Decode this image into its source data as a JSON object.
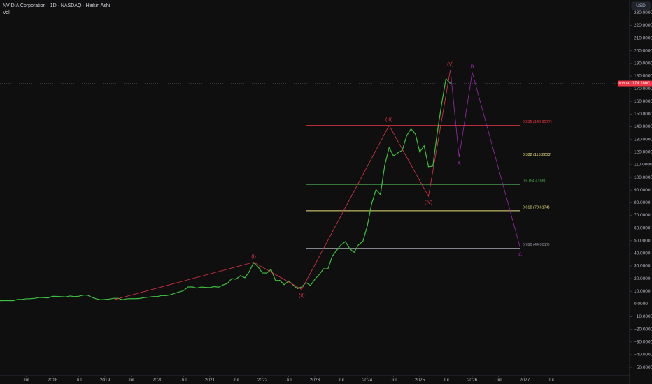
{
  "chart_data": {
    "type": "line",
    "title": "NVIDIA Corporation · 1D · NASDAQ · Heikin Ashi",
    "subtitle": "Vol",
    "currency": "USD",
    "xlim": [
      "2017-01",
      "2029-01"
    ],
    "ylim": [
      -56.6,
      240.1
    ],
    "xticks": [
      {
        "value": "2017-07",
        "label": "Jul"
      },
      {
        "value": "2018-01",
        "label": "2018"
      },
      {
        "value": "2018-07",
        "label": "Jul"
      },
      {
        "value": "2019-01",
        "label": "2019"
      },
      {
        "value": "2019-07",
        "label": "Jul"
      },
      {
        "value": "2020-01",
        "label": "2020"
      },
      {
        "value": "2020-07",
        "label": "Jul"
      },
      {
        "value": "2021-01",
        "label": "2021"
      },
      {
        "value": "2021-07",
        "label": "Jul"
      },
      {
        "value": "2022-01",
        "label": "2022"
      },
      {
        "value": "2022-07",
        "label": "Jul"
      },
      {
        "value": "2023-01",
        "label": "2023"
      },
      {
        "value": "2023-07",
        "label": "Jul"
      },
      {
        "value": "2024-01",
        "label": "2024"
      },
      {
        "value": "2024-07",
        "label": "Jul"
      },
      {
        "value": "2025-01",
        "label": "2025"
      },
      {
        "value": "2025-07",
        "label": "Jul"
      },
      {
        "value": "2026-01",
        "label": "2026"
      },
      {
        "value": "2026-07",
        "label": "Jul"
      },
      {
        "value": "2027-01",
        "label": "2027"
      },
      {
        "value": "2027-07",
        "label": "Jul"
      }
    ],
    "yticks": [
      {
        "value": 230,
        "label": "230.0000"
      },
      {
        "value": 220,
        "label": "220.0000"
      },
      {
        "value": 210,
        "label": "210.0000"
      },
      {
        "value": 200,
        "label": "200.0000"
      },
      {
        "value": 190,
        "label": "190.0000"
      },
      {
        "value": 180,
        "label": "180.0000"
      },
      {
        "value": 170,
        "label": "170.0000"
      },
      {
        "value": 160,
        "label": "160.0000"
      },
      {
        "value": 150,
        "label": "150.0000"
      },
      {
        "value": 140,
        "label": "140.0000"
      },
      {
        "value": 130,
        "label": "130.0000"
      },
      {
        "value": 120,
        "label": "120.0000"
      },
      {
        "value": 110,
        "label": "110.0000"
      },
      {
        "value": 100,
        "label": "100.0000"
      },
      {
        "value": 90,
        "label": "90.0000"
      },
      {
        "value": 80,
        "label": "80.0000"
      },
      {
        "value": 70,
        "label": "70.0000"
      },
      {
        "value": 60,
        "label": "60.0000"
      },
      {
        "value": 50,
        "label": "50.0000"
      },
      {
        "value": 40,
        "label": "40.0000"
      },
      {
        "value": 30,
        "label": "30.0000"
      },
      {
        "value": 20,
        "label": "20.0000"
      },
      {
        "value": 10,
        "label": "10.0000"
      },
      {
        "value": 0,
        "label": "0.0000"
      },
      {
        "value": -10,
        "label": "−10.0000"
      },
      {
        "value": -20,
        "label": "−20.0000"
      },
      {
        "value": -30,
        "label": "−30.0000"
      },
      {
        "value": -40,
        "label": "−40.0000"
      },
      {
        "value": -50,
        "label": "−50.0000"
      }
    ],
    "x": [
      "2017-01",
      "2017-02",
      "2017-03",
      "2017-04",
      "2017-05",
      "2017-06",
      "2017-07",
      "2017-08",
      "2017-09",
      "2017-10",
      "2017-11",
      "2017-12",
      "2018-01",
      "2018-02",
      "2018-03",
      "2018-04",
      "2018-05",
      "2018-06",
      "2018-07",
      "2018-08",
      "2018-09",
      "2018-10",
      "2018-11",
      "2018-12",
      "2019-01",
      "2019-02",
      "2019-03",
      "2019-04",
      "2019-05",
      "2019-06",
      "2019-07",
      "2019-08",
      "2019-09",
      "2019-10",
      "2019-11",
      "2019-12",
      "2020-01",
      "2020-02",
      "2020-03",
      "2020-04",
      "2020-05",
      "2020-06",
      "2020-07",
      "2020-08",
      "2020-09",
      "2020-10",
      "2020-11",
      "2020-12",
      "2021-01",
      "2021-02",
      "2021-03",
      "2021-04",
      "2021-05",
      "2021-06",
      "2021-07",
      "2021-08",
      "2021-09",
      "2021-10",
      "2021-11",
      "2021-12",
      "2022-01",
      "2022-02",
      "2022-03",
      "2022-04",
      "2022-05",
      "2022-06",
      "2022-07",
      "2022-08",
      "2022-09",
      "2022-10",
      "2022-11",
      "2022-12",
      "2023-01",
      "2023-02",
      "2023-03",
      "2023-04",
      "2023-05",
      "2023-06",
      "2023-07",
      "2023-08",
      "2023-09",
      "2023-10",
      "2023-11",
      "2023-12",
      "2024-01",
      "2024-02",
      "2024-03",
      "2024-04",
      "2024-05",
      "2024-06",
      "2024-07",
      "2024-08",
      "2024-09",
      "2024-10",
      "2024-11",
      "2024-12",
      "2025-01",
      "2025-02",
      "2025-03",
      "2025-04",
      "2025-05",
      "2025-06",
      "2025-07",
      "2025-08"
    ],
    "series": [
      {
        "name": "NVDA",
        "color": "#3fbf3f",
        "values": [
          2.6,
          2.7,
          2.7,
          2.6,
          3.6,
          3.6,
          4.1,
          4.2,
          4.5,
          5.2,
          5.0,
          4.8,
          6.1,
          6.0,
          5.8,
          5.6,
          6.3,
          5.9,
          6.1,
          7.0,
          7.0,
          5.3,
          4.1,
          3.3,
          3.6,
          3.9,
          4.5,
          4.5,
          3.4,
          4.1,
          4.2,
          4.2,
          4.4,
          5.1,
          5.4,
          5.9,
          5.9,
          6.7,
          6.6,
          7.3,
          8.5,
          9.5,
          10.6,
          13.4,
          13.5,
          12.5,
          13.4,
          13.1,
          13.0,
          13.7,
          13.3,
          15.0,
          16.2,
          20.0,
          19.5,
          22.4,
          20.7,
          25.5,
          32.6,
          29.4,
          24.5,
          24.4,
          27.3,
          18.5,
          18.6,
          15.2,
          18.2,
          15.1,
          12.1,
          13.5,
          16.9,
          14.6,
          19.5,
          23.2,
          27.8,
          27.7,
          37.8,
          42.3,
          46.7,
          49.3,
          43.5,
          40.8,
          46.8,
          49.5,
          61.5,
          79.1,
          90.4,
          86.4,
          109.6,
          123.5,
          117.0,
          119.4,
          121.4,
          132.8,
          138.3,
          134.3,
          120.1,
          124.9,
          108.4,
          108.9,
          135.1,
          158.0,
          177.9,
          174.2
        ]
      }
    ],
    "last_price": {
      "symbol": "NVDA",
      "value": 174.18,
      "label": "174.1800",
      "color": "#f23645"
    },
    "fib": {
      "start": "2022-11",
      "end": "2026-12",
      "levels": [
        {
          "label": "0.236 (140.9577)",
          "value": 140.9577,
          "color": "#f23645"
        },
        {
          "label": "0.382 (115.2203)",
          "value": 115.2203,
          "color": "#e6e07a"
        },
        {
          "label": "0.5 (94.4188)",
          "value": 94.4188,
          "color": "#4caf50"
        },
        {
          "label": "0.618 (73.6174)",
          "value": 73.6174,
          "color": "#e6e07a"
        },
        {
          "label": "0.786 (44.0017)",
          "value": 44.0017,
          "color": "#9598a1"
        }
      ]
    },
    "waves": [
      {
        "color": "#e0344a",
        "points": [
          {
            "x": "2019-03",
            "value": 3.3
          },
          {
            "x": "2021-11",
            "value": 33,
            "label": "(I)"
          },
          {
            "x": "2022-10",
            "value": 11.5,
            "label": "(II)"
          },
          {
            "x": "2024-06",
            "value": 141,
            "label": "(III)"
          },
          {
            "x": "2025-03",
            "value": 85,
            "label": "(IV)"
          },
          {
            "x": "2025-08",
            "value": 185,
            "label": "(V)"
          }
        ]
      },
      {
        "color": "#9c27b0",
        "points": [
          {
            "x": "2025-08",
            "value": 185
          },
          {
            "x": "2025-10",
            "value": 116,
            "label": "A"
          },
          {
            "x": "2026-01",
            "value": 183,
            "label": "B"
          },
          {
            "x": "2026-12",
            "value": 44,
            "label": "C"
          }
        ]
      }
    ]
  }
}
